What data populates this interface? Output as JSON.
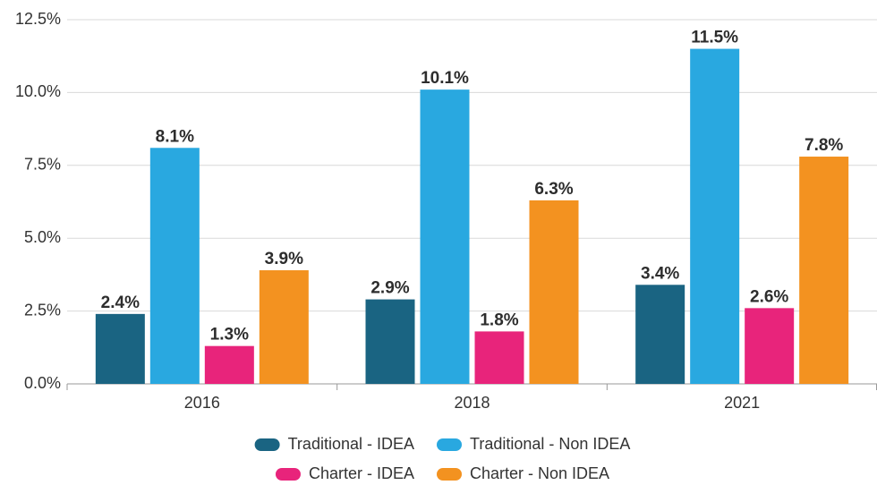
{
  "chart_data": {
    "type": "bar",
    "categories": [
      "2016",
      "2018",
      "2021"
    ],
    "series": [
      {
        "name": "Traditional - IDEA",
        "color": "#1a6482",
        "values": [
          2.4,
          2.9,
          3.4
        ],
        "value_labels": [
          "2.4%",
          "2.9%",
          "3.4%"
        ]
      },
      {
        "name": "Traditional - Non IDEA",
        "color": "#29a8e0",
        "values": [
          8.1,
          10.1,
          11.5
        ],
        "value_labels": [
          "8.1%",
          "10.1%",
          "11.5%"
        ]
      },
      {
        "name": "Charter - IDEA",
        "color": "#e8247b",
        "values": [
          1.3,
          1.8,
          2.6
        ],
        "value_labels": [
          "1.3%",
          "1.8%",
          "2.6%"
        ]
      },
      {
        "name": "Charter - Non IDEA",
        "color": "#f39220",
        "values": [
          3.9,
          6.3,
          7.8
        ],
        "value_labels": [
          "3.9%",
          "6.3%",
          "7.8%"
        ]
      }
    ],
    "ylim": [
      0,
      12.5
    ],
    "yticks": [
      {
        "value": 0,
        "label": "0.0%"
      },
      {
        "value": 2.5,
        "label": "2.5%"
      },
      {
        "value": 5,
        "label": "5.0%"
      },
      {
        "value": 7.5,
        "label": "7.5%"
      },
      {
        "value": 10,
        "label": "10.0%"
      },
      {
        "value": 12.5,
        "label": "12.5%"
      }
    ],
    "grid": true,
    "legend": "bottom"
  }
}
